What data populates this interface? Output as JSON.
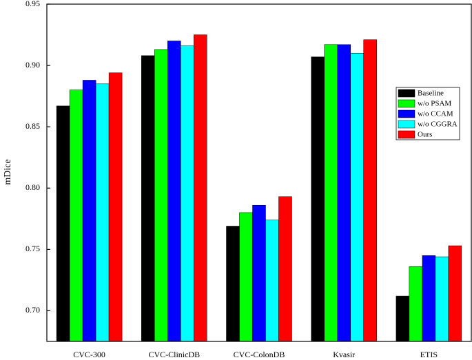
{
  "chart_data": {
    "type": "bar",
    "y_label": "mDice",
    "categories": [
      "CVC-300",
      "CVC-ClinicDB",
      "CVC-ColonDB",
      "Kvasir",
      "ETIS"
    ],
    "series": [
      {
        "name": "Baseline",
        "color": "#000000",
        "values": [
          0.867,
          0.908,
          0.769,
          0.907,
          0.712
        ]
      },
      {
        "name": "w/o PSAM",
        "color": "#00ff00",
        "values": [
          0.88,
          0.913,
          0.78,
          0.917,
          0.736
        ]
      },
      {
        "name": "w/o CCAM",
        "color": "#0000ff",
        "values": [
          0.888,
          0.92,
          0.786,
          0.917,
          0.745
        ]
      },
      {
        "name": "w/o CGGRA",
        "color": "#00ffff",
        "values": [
          0.885,
          0.916,
          0.774,
          0.91,
          0.744
        ]
      },
      {
        "name": "Ours",
        "color": "#ff0000",
        "values": [
          0.894,
          0.925,
          0.793,
          0.921,
          0.753
        ]
      }
    ],
    "ylim": [
      0.675,
      0.95
    ],
    "yticks": [
      {
        "value": 0.7,
        "label": "0.70"
      },
      0.75,
      {
        "value": 0.8,
        "label": "0.80"
      },
      0.85,
      {
        "value": 0.9,
        "label": "0.90"
      },
      0.95
    ],
    "legend": "right"
  }
}
